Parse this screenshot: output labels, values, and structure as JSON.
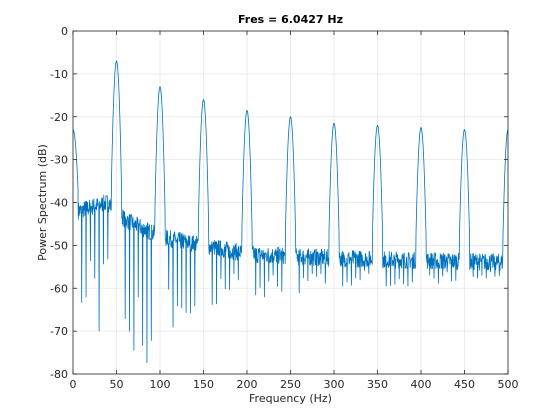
{
  "chart_data": {
    "type": "line",
    "title": "Fres = 6.0427 Hz",
    "xlabel": "Frequency (Hz)",
    "ylabel": "Power Spectrum (dB)",
    "xlim": [
      0,
      500
    ],
    "ylim": [
      -80,
      0
    ],
    "xticks": [
      "0",
      "50",
      "100",
      "150",
      "200",
      "250",
      "300",
      "350",
      "400",
      "450",
      "500"
    ],
    "yticks": [
      "0",
      "-10",
      "-20",
      "-30",
      "-40",
      "-50",
      "-60",
      "-70",
      "-80"
    ],
    "grid": true,
    "legend": "none",
    "line_color": "#0072BD",
    "series": [
      {
        "peaks": [
          {
            "x": 0,
            "y": -23
          },
          {
            "x": 50,
            "y": -7
          },
          {
            "x": 100,
            "y": -13
          },
          {
            "x": 150,
            "y": -16
          },
          {
            "x": 200,
            "y": -18.5
          },
          {
            "x": 250,
            "y": -20
          },
          {
            "x": 300,
            "y": -21.5
          },
          {
            "x": 350,
            "y": -22
          },
          {
            "x": 400,
            "y": -22.5
          },
          {
            "x": 450,
            "y": -23
          },
          {
            "x": 500,
            "y": -23
          }
        ],
        "peak_half_width_hz": 6,
        "sidelobe_floor": [
          {
            "x": 5,
            "y": -42
          },
          {
            "x": 40,
            "y": -40
          },
          {
            "x": 60,
            "y": -44
          },
          {
            "x": 100,
            "y": -48
          },
          {
            "x": 150,
            "y": -50
          },
          {
            "x": 200,
            "y": -52
          },
          {
            "x": 300,
            "y": -53
          },
          {
            "x": 500,
            "y": -54
          }
        ],
        "nulls_min": [
          {
            "x": 5,
            "y": -63
          },
          {
            "x": 15,
            "y": -69
          },
          {
            "x": 80,
            "y": -78
          },
          {
            "x": 90,
            "y": -80
          },
          {
            "x": 120,
            "y": -68
          },
          {
            "x": 150,
            "y": -65
          },
          {
            "x": 200,
            "y": -63
          },
          {
            "x": 300,
            "y": -60
          },
          {
            "x": 500,
            "y": -59
          }
        ]
      }
    ]
  }
}
